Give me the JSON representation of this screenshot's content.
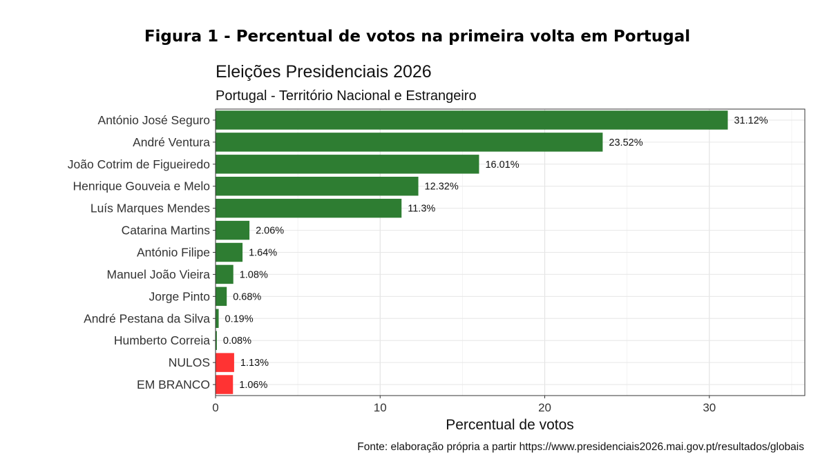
{
  "figure_label": "Figura 1 - Percentual de votos na primeira volta em Portugal",
  "chart_data": {
    "type": "bar",
    "orientation": "horizontal",
    "title": "Eleições Presidenciais 2026",
    "subtitle": "Portugal - Território Nacional e Estrangeiro",
    "xlabel": "Percentual de votos",
    "ylabel": "",
    "caption": "Fonte: elaboração própria a partir https://www.presidenciais2026.mai.gov.pt/resultados/globais",
    "xlim": [
      0,
      35.8
    ],
    "xticks": [
      0,
      10,
      20,
      30
    ],
    "grid": true,
    "categories": [
      "António José Seguro",
      "André Ventura",
      "João Cotrim de Figueiredo",
      "Henrique Gouveia e Melo",
      "Luís Marques Mendes",
      "Catarina Martins",
      "António Filipe",
      "Manuel João Vieira",
      "Jorge Pinto",
      "André Pestana da Silva",
      "Humberto Correia",
      "NULOS",
      "EM BRANCO"
    ],
    "values": [
      31.12,
      23.52,
      16.01,
      12.32,
      11.3,
      2.06,
      1.64,
      1.08,
      0.68,
      0.19,
      0.08,
      1.13,
      1.06
    ],
    "labels": [
      "31.12%",
      "23.52%",
      "16.01%",
      "12.32%",
      "11.3%",
      "2.06%",
      "1.64%",
      "1.08%",
      "0.68%",
      "0.19%",
      "0.08%",
      "1.13%",
      "1.06%"
    ],
    "colors": [
      "#2e7d32",
      "#2e7d32",
      "#2e7d32",
      "#2e7d32",
      "#2e7d32",
      "#2e7d32",
      "#2e7d32",
      "#2e7d32",
      "#2e7d32",
      "#2e7d32",
      "#2e7d32",
      "#ff3333",
      "#ff3333"
    ]
  }
}
